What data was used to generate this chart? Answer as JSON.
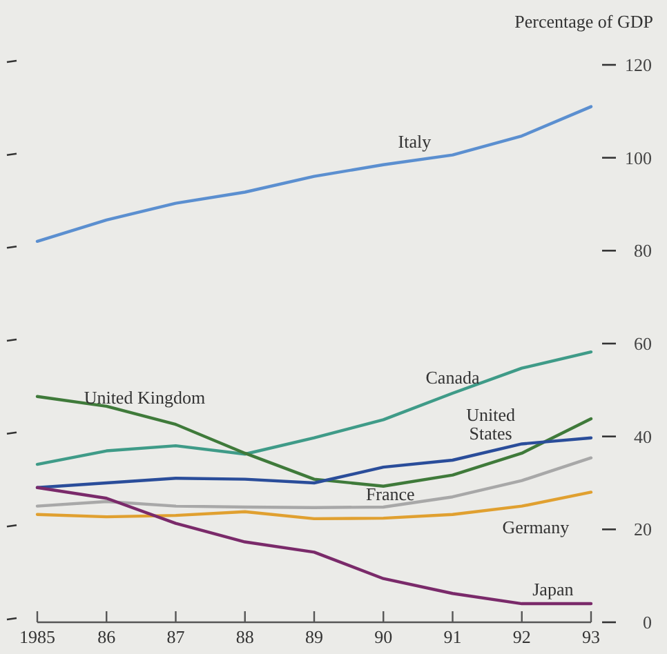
{
  "chart_data": {
    "type": "line",
    "ylabel": "Percentage of GDP",
    "x": [
      1985,
      1986,
      1987,
      1988,
      1989,
      1990,
      1991,
      1992,
      1993
    ],
    "xlim": [
      1985,
      1993
    ],
    "xticks": [
      1985,
      {
        "value": 1986,
        "label": "86"
      },
      {
        "value": 1987,
        "label": "87"
      },
      {
        "value": 1988,
        "label": "88"
      },
      {
        "value": 1989,
        "label": "89"
      },
      {
        "value": 1990,
        "label": "90"
      },
      {
        "value": 1991,
        "label": "91"
      },
      {
        "value": 1992,
        "label": "92"
      },
      {
        "value": 1993,
        "label": "93"
      }
    ],
    "ylim": [
      0,
      120
    ],
    "yticks": [
      0,
      20,
      40,
      60,
      80,
      100,
      120
    ],
    "grid": false,
    "marker": "none",
    "line_style": "solid",
    "series": [
      {
        "name": "Italy",
        "color": "#5b8fd0",
        "values": [
          82,
          86.6,
          90.2,
          92.6,
          96,
          98.5,
          100.6,
          104.7,
          111
        ]
      },
      {
        "name": "Canada",
        "color": "#3f9b88",
        "values": [
          34,
          36.9,
          38,
          36.2,
          39.7,
          43.6,
          49.3,
          54.7,
          58.2
        ]
      },
      {
        "name": "United Kingdom",
        "color": "#3f7a3a",
        "values": [
          48.6,
          46.5,
          42.6,
          36.4,
          30.8,
          29.3,
          31.7,
          36.4,
          43.8
        ]
      },
      {
        "name": "United States",
        "color": "#2a4d9a",
        "values": [
          29,
          30,
          31,
          30.8,
          30,
          33.4,
          34.9,
          38.4,
          39.7
        ]
      },
      {
        "name": "France",
        "color": "#a8a8a8",
        "values": [
          25,
          26,
          25,
          24.8,
          24.7,
          24.8,
          27,
          30.5,
          35.4
        ]
      },
      {
        "name": "Germany",
        "color": "#e0a030",
        "values": [
          23.2,
          22.7,
          23,
          23.8,
          22.3,
          22.4,
          23.2,
          25,
          28
        ]
      },
      {
        "name": "Japan",
        "color": "#7a2a6a",
        "values": [
          29,
          26.7,
          21.3,
          17.3,
          15.1,
          9.4,
          6.2,
          4,
          4
        ]
      }
    ]
  }
}
